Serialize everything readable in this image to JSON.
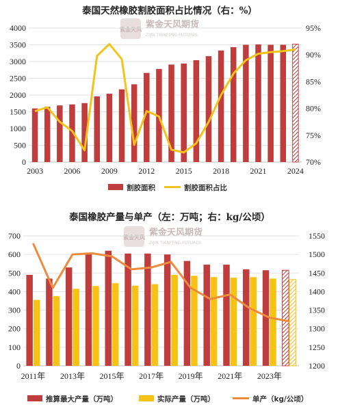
{
  "watermark": {
    "seal": "紫金天风",
    "text": "紫金天风期货",
    "sub": "ZIJIN TIANFENG FUTURES"
  },
  "chart_data": [
    {
      "type": "bar",
      "title": "泰国天然橡胶割胶面积占比情况（右：%）",
      "categories": [
        "2003",
        "2004",
        "2005",
        "2006",
        "2007",
        "2008",
        "2009",
        "2010",
        "2011",
        "2012",
        "2013",
        "2014",
        "2015",
        "2016",
        "2017",
        "2018",
        "2019",
        "2020",
        "2021",
        "2022",
        "2023",
        "2024"
      ],
      "x_tick_labels": [
        "2003",
        "2006",
        "2009",
        "2012",
        "2015",
        "2018",
        "2021",
        "2024"
      ],
      "ylim": [
        0,
        4000
      ],
      "y_ticks": [
        "0",
        "500",
        "1000",
        "1500",
        "2000",
        "2500",
        "3000",
        "3500",
        "4000"
      ],
      "y2lim": [
        70,
        95
      ],
      "y2_ticks": [
        "70%",
        "75%",
        "80%",
        "85%",
        "90%",
        "95%"
      ],
      "hatched_last": true,
      "colors": {
        "bar": "#bf3d3d",
        "line": "#f2c31a"
      },
      "series": [
        {
          "name": "割胶面积",
          "type": "bar",
          "axis": "left",
          "values": [
            1600,
            1650,
            1690,
            1720,
            1760,
            1960,
            2040,
            2170,
            2320,
            2660,
            2780,
            2910,
            2940,
            3040,
            3160,
            3330,
            3430,
            3500,
            3510,
            3500,
            3500,
            3520
          ]
        },
        {
          "name": "割胶面积占比",
          "type": "line",
          "axis": "right",
          "values": [
            79.5,
            80.2,
            77.5,
            75.8,
            72.2,
            89.8,
            92.0,
            89.2,
            73.2,
            79.5,
            78.5,
            72.3,
            71.8,
            73.5,
            77.5,
            82.5,
            86.5,
            89.0,
            90.2,
            90.5,
            90.7,
            91.0
          ]
        }
      ]
    },
    {
      "type": "bar",
      "title": "泰国橡胶产量与单产（左：万吨；右：kg/公顷）",
      "categories": [
        "2011年",
        "2012年",
        "2013年",
        "2014年",
        "2015年",
        "2016年",
        "2017年",
        "2018年",
        "2019年",
        "2020年",
        "2021年",
        "2022年",
        "2023年",
        "2024年"
      ],
      "x_tick_labels": [
        "2011年",
        "2013年",
        "2015年",
        "2017年",
        "2019年",
        "2021年",
        "2023年"
      ],
      "ylim": [
        0,
        700
      ],
      "y_ticks": [
        "0",
        "100",
        "200",
        "300",
        "400",
        "500",
        "600",
        "700"
      ],
      "y2lim": [
        1200,
        1550
      ],
      "y2_ticks": [
        "1200",
        "1250",
        "1300",
        "1350",
        "1400",
        "1450",
        "1500",
        "1550"
      ],
      "hatched_last": true,
      "colors": {
        "bar1": "#bf3d3d",
        "bar2": "#f6c215",
        "line": "#ef8a3c"
      },
      "series": [
        {
          "name": "推算最大产量（万吨）",
          "type": "bar",
          "axis": "left",
          "values": [
            490,
            470,
            530,
            610,
            620,
            605,
            605,
            600,
            565,
            545,
            545,
            520,
            515,
            515
          ]
        },
        {
          "name": "实际产量（万吨）",
          "type": "bar",
          "axis": "left",
          "values": [
            355,
            375,
            415,
            430,
            445,
            432,
            440,
            490,
            485,
            478,
            475,
            478,
            470,
            465
          ]
        },
        {
          "name": "单产（kg/公顷）",
          "type": "line",
          "axis": "right",
          "values": [
            1530,
            1410,
            1500,
            1503,
            1495,
            1460,
            1465,
            1480,
            1410,
            1380,
            1392,
            1355,
            1330,
            1320
          ]
        }
      ]
    }
  ]
}
